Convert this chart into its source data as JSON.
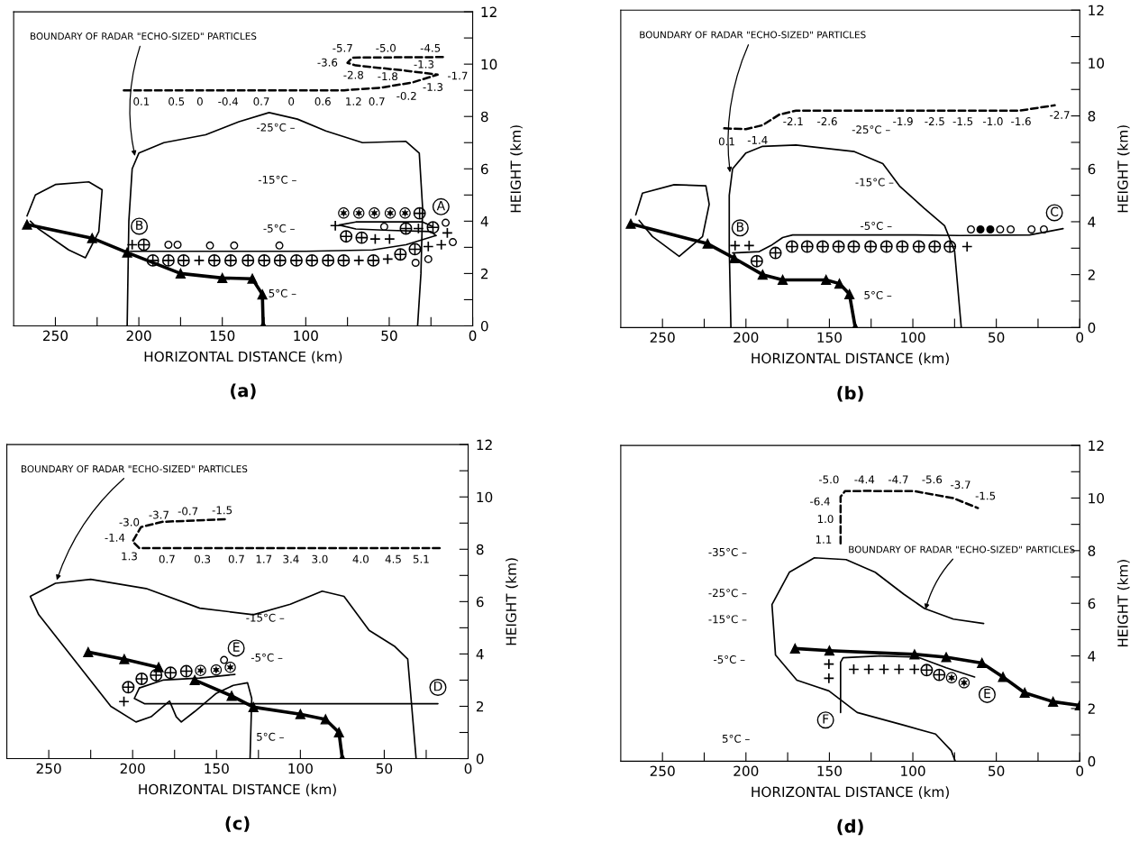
{
  "chart_data": [
    {
      "type": "line",
      "title": "(a)",
      "xlabel": "HORIZONTAL DISTANCE (km)",
      "ylabel": "HEIGHT (km)",
      "xlim": [
        275,
        0
      ],
      "ylim": [
        0,
        12
      ],
      "xticks": [
        250,
        {
          "value": 225,
          "label": null
        },
        200,
        {
          "value": 175,
          "label": null
        },
        150,
        {
          "value": 125,
          "label": null
        },
        100,
        {
          "value": 75,
          "label": null
        },
        50,
        {
          "value": 25,
          "label": null
        },
        0
      ],
      "yticks": [
        0,
        {
          "value": 1,
          "label": null
        },
        2,
        {
          "value": 3,
          "label": null
        },
        4,
        {
          "value": 5,
          "label": null
        },
        6,
        {
          "value": 7,
          "label": null
        },
        8,
        {
          "value": 9,
          "label": null
        },
        10,
        {
          "value": 11,
          "label": null
        },
        12
      ],
      "series": [
        {
          "name": "A",
          "color": "#000000",
          "line_style": "solid",
          "x": [
            22,
            25,
            50,
            70,
            80,
            70,
            30,
            24
          ],
          "values": [
            3.45,
            3.6,
            3.65,
            3.7,
            3.85,
            3.97,
            3.97,
            3.8
          ]
        },
        {
          "name": "B",
          "color": "#000000",
          "line_style": "solid",
          "x": [
            205,
            100,
            60,
            40,
            22
          ],
          "values": [
            2.85,
            2.85,
            2.9,
            3.1,
            3.45
          ]
        },
        {
          "color": "#000000",
          "line_style": "solid",
          "x": [
            207,
            206,
            204,
            200,
            185,
            160,
            140,
            122,
            105,
            88,
            66,
            40,
            32,
            30,
            31,
            33
          ],
          "values": [
            0,
            4,
            6,
            6.6,
            7.0,
            7.3,
            7.8,
            8.15,
            7.9,
            7.45,
            7.0,
            7.05,
            6.6,
            4.5,
            2,
            0
          ]
        },
        {
          "color": "#000000",
          "line_style": "solid",
          "x": [
            267,
            262,
            250,
            230,
            222,
            224,
            232,
            242,
            260,
            265
          ],
          "values": [
            4.2,
            5.0,
            5.4,
            5.5,
            5.2,
            3.6,
            2.6,
            2.9,
            3.7,
            4.0
          ]
        },
        {
          "color": "#000000",
          "line_style": "solid",
          "marker": "triangle",
          "x": [
            267,
            228,
            207,
            175,
            150,
            132,
            126,
            125.5
          ],
          "values": [
            3.87,
            3.35,
            2.8,
            2.0,
            1.83,
            1.8,
            1.2,
            0
          ]
        },
        {
          "color": "#000000",
          "line_style": "dashed",
          "x": [
            209,
            77,
            55,
            36,
            21,
            40,
            70,
            75,
            72,
            16
          ],
          "values": [
            9.0,
            9.0,
            9.1,
            9.3,
            9.6,
            9.75,
            9.95,
            10.05,
            10.25,
            10.27
          ]
        },
        {
          "type": "scatter",
          "color": "#000000",
          "x": [
            191.6,
            182.3,
            173.2,
            154.8,
            145,
            134.6,
            124.9,
            115.4,
            105.6,
            96.3,
            86.6,
            77.3,
            59.5,
            43.3,
            34.6,
            197,
            75.8,
            66.5,
            40,
            23.8,
            31.8
          ],
          "values": [
            2.5,
            2.5,
            2.5,
            2.5,
            2.5,
            2.5,
            2.5,
            2.5,
            2.5,
            2.5,
            2.5,
            2.5,
            2.5,
            2.73,
            2.93,
            3.1,
            3.42,
            3.37,
            3.72,
            3.76,
            4.3
          ]
        },
        {
          "type": "scatter",
          "color": "#000000",
          "marker": "cross",
          "x": [
            163.9,
            68.2,
            50.9,
            204,
            58.4,
            49.8,
            82.3,
            32.5,
            15.2,
            26.6,
            18.8
          ],
          "values": [
            2.5,
            2.5,
            2.55,
            3.1,
            3.32,
            3.32,
            3.83,
            3.72,
            3.55,
            3.03,
            3.1
          ]
        },
        {
          "type": "scatter",
          "color": "#000000",
          "marker": "circle",
          "x": [
            182.3,
            176.8,
            157.4,
            142.9,
            115.8,
            53,
            16.2,
            11.9,
            26.6,
            34.2
          ],
          "values": [
            3.1,
            3.1,
            3.07,
            3.07,
            3.07,
            3.79,
            3.94,
            3.2,
            2.55,
            2.41
          ]
        },
        {
          "type": "scatter",
          "color": "#000000",
          "marker": "star",
          "x": [
            77.3,
            68.2,
            58.9,
            49.4,
            40.5
          ],
          "values": [
            4.31,
            4.31,
            4.31,
            4.31,
            4.31
          ]
        }
      ],
      "annotations": [
        {
          "text": "BOUNDARY OF RADAR \"ECHO-SIZED\" PARTICLES",
          "x": 202,
          "y": 6.4
        },
        "0.1",
        "0.5",
        "0",
        "-0.4",
        "0.7",
        "0",
        "0.6",
        "1.2",
        "0.7",
        "-0.2",
        "-1.3",
        "-1.7",
        "-1.8",
        "-2.8",
        "-3.6",
        "-1.3",
        "-5.7",
        "-5.0",
        "-4.5",
        "-25°C –",
        "-15°C –",
        "-5°C –",
        "5°C –"
      ]
    },
    {
      "type": "line",
      "title": "(b)",
      "xlabel": "HORIZONTAL DISTANCE (km)",
      "ylabel": "HEIGHT (km)",
      "xlim": [
        275,
        0
      ],
      "ylim": [
        0,
        12
      ],
      "xticks": [
        250,
        {
          "value": 225,
          "label": null
        },
        200,
        {
          "value": 175,
          "label": null
        },
        150,
        {
          "value": 125,
          "label": null
        },
        100,
        {
          "value": 75,
          "label": null
        },
        50,
        {
          "value": 25,
          "label": null
        },
        0
      ],
      "yticks": [
        0,
        {
          "value": 1,
          "label": null
        },
        2,
        {
          "value": 3,
          "label": null
        },
        4,
        {
          "value": 5,
          "label": null
        },
        6,
        {
          "value": 7,
          "label": null
        },
        8,
        {
          "value": 9,
          "label": null
        },
        10,
        {
          "value": 11,
          "label": null
        },
        12
      ],
      "series": [
        {
          "name": "B",
          "color": "#000000",
          "line_style": "solid",
          "x": [
            208,
            192,
            185,
            178,
            172,
            100,
            72,
            30,
            10
          ],
          "values": [
            2.82,
            2.87,
            3.1,
            3.4,
            3.5,
            3.5,
            3.48,
            3.5,
            3.74
          ]
        },
        {
          "color": "#000000",
          "line_style": "solid",
          "x": [
            209,
            210,
            210,
            208,
            200,
            190,
            170,
            135,
            118,
            108,
            93,
            81,
            75,
            71
          ],
          "values": [
            0,
            3,
            5,
            6,
            6.6,
            6.85,
            6.9,
            6.65,
            6.2,
            5.35,
            4.5,
            3.85,
            2.9,
            0
          ]
        },
        {
          "color": "#000000",
          "line_style": "solid",
          "x": [
            266,
            262,
            243,
            224,
            222,
            226,
            240,
            256,
            264
          ],
          "values": [
            4.26,
            5.08,
            5.4,
            5.36,
            4.66,
            3.44,
            2.69,
            3.44,
            4.05
          ]
        },
        {
          "color": "#000000",
          "line_style": "solid",
          "marker": "triangle",
          "x": [
            269,
            223,
            207,
            190,
            178,
            152,
            144,
            138,
            134.5
          ],
          "values": [
            3.92,
            3.17,
            2.62,
            2.0,
            1.8,
            1.8,
            1.66,
            1.26,
            0
          ]
        },
        {
          "color": "#000000",
          "line_style": "dashed",
          "x": [
            213,
            200,
            190,
            180,
            170,
            93,
            36,
            15
          ],
          "values": [
            7.53,
            7.5,
            7.65,
            8.05,
            8.2,
            8.2,
            8.2,
            8.4
          ]
        },
        {
          "type": "scatter",
          "color": "#000000",
          "x": [
            172.4,
            163.3,
            154,
            144.5,
            135.4,
            125.3,
            115.8,
            106.3,
            96.4,
            86.9,
            77.8,
            193.5,
            182.3
          ],
          "values": [
            3.06,
            3.06,
            3.06,
            3.06,
            3.06,
            3.06,
            3.06,
            3.06,
            3.06,
            3.06,
            3.06,
            2.51,
            2.82
          ]
        },
        {
          "type": "scatter",
          "color": "#000000",
          "marker": "cross",
          "x": [
            206.5,
            198.1,
            67.5
          ],
          "values": [
            3.1,
            3.1,
            3.06
          ]
        },
        {
          "type": "scatter",
          "color": "#000000",
          "marker": "circle",
          "x": [
            65.2,
            47.7,
            41.4,
            28.9,
            21.5
          ],
          "values": [
            3.71,
            3.71,
            3.71,
            3.71,
            3.71
          ]
        },
        {
          "type": "scatter",
          "color": "#000000",
          "marker": "circle",
          "colors": [
            "#000000",
            "#000000"
          ],
          "x": [
            59.5,
            53.6
          ],
          "values": [
            3.71,
            3.71
          ]
        }
      ],
      "annotations": [
        {
          "text": "BOUNDARY OF RADAR \"ECHO-SIZED\" PARTICLES",
          "x": 209.3,
          "y": 5.77
        },
        "C",
        "0.1",
        "-1.4",
        "-2.1",
        "-2.6",
        "-1.9",
        "-2.5",
        "-1.5",
        "-1.0",
        "-1.6",
        "-2.7",
        "-25°C –",
        "-15°C –",
        "-5°C –",
        "5°C –"
      ]
    },
    {
      "type": "line",
      "title": "(c)",
      "xlabel": "HORIZONTAL DISTANCE (km)",
      "ylabel": "HEIGHT (km)",
      "xlim": [
        275,
        0
      ],
      "ylim": [
        0,
        12
      ],
      "xticks": [
        250,
        {
          "value": 225,
          "label": null
        },
        200,
        {
          "value": 175,
          "label": null
        },
        150,
        {
          "value": 125,
          "label": null
        },
        100,
        {
          "value": 75,
          "label": null
        },
        50,
        {
          "value": 25,
          "label": null
        },
        0
      ],
      "yticks": [
        0,
        {
          "value": 1,
          "label": null
        },
        2,
        {
          "value": 3,
          "label": null
        },
        4,
        {
          "value": 5,
          "label": null
        },
        6,
        {
          "value": 7,
          "label": null
        },
        8,
        {
          "value": 9,
          "label": null
        },
        10,
        {
          "value": 11,
          "label": null
        },
        12
      ],
      "series": [
        {
          "name": "D",
          "color": "#000000",
          "line_style": "solid",
          "x": [
            18,
            193,
            199,
            196
          ],
          "values": [
            2.1,
            2.1,
            2.3,
            2.7
          ]
        },
        {
          "name": "E",
          "color": "#000000",
          "line_style": "solid",
          "x": [
            139,
            160,
            182,
            196
          ],
          "values": [
            3.22,
            3.08,
            3.0,
            2.7
          ]
        },
        {
          "color": "#000000",
          "line_style": "solid",
          "x": [
            130,
            129,
            131.5,
            140,
            150,
            163,
            171,
            174,
            178,
            189,
            198,
            213,
            256,
            261,
            246,
            225,
            192,
            160,
            128,
            106,
            87,
            74,
            59,
            44,
            36,
            31
          ],
          "values": [
            0,
            2.3,
            2.9,
            2.8,
            2.5,
            1.8,
            1.4,
            1.6,
            2.2,
            1.6,
            1.4,
            2.0,
            5.5,
            6.2,
            6.7,
            6.85,
            6.5,
            5.75,
            5.5,
            5.9,
            6.4,
            6.2,
            4.9,
            4.3,
            3.8,
            0
          ]
        },
        {
          "color": "#000000",
          "line_style": "solid",
          "marker": "triangle",
          "x": [
            226.5,
            205,
            184.5
          ],
          "values": [
            4.07,
            3.8,
            3.49
          ]
        },
        {
          "color": "#000000",
          "line_style": "solid",
          "marker": "triangle",
          "x": [
            163,
            141,
            128,
            100,
            85,
            77,
            75
          ],
          "values": [
            3.0,
            2.4,
            1.97,
            1.7,
            1.5,
            1.0,
            0
          ]
        },
        {
          "color": "#000000",
          "line_style": "dashed",
          "x": [
            17,
            196,
            200,
            195,
            182,
            143
          ],
          "values": [
            8.04,
            8.04,
            8.3,
            8.85,
            9.05,
            9.15
          ]
        },
        {
          "type": "scatter",
          "color": "#000000",
          "x": [
            202.6,
            194.6,
            186,
            177.4,
            168
          ],
          "values": [
            2.73,
            3.05,
            3.19,
            3.28,
            3.34
          ]
        },
        {
          "type": "scatter",
          "color": "#000000",
          "marker": "star",
          "x": [
            159.5,
            150.2,
            141.8
          ],
          "values": [
            3.37,
            3.39,
            3.49
          ]
        },
        {
          "type": "scatter",
          "color": "#000000",
          "marker": "circle",
          "x": [
            145.5
          ],
          "values": [
            3.77
          ]
        },
        {
          "type": "scatter",
          "color": "#000000",
          "marker": "cross",
          "x": [
            205.2
          ],
          "values": [
            2.18
          ]
        }
      ],
      "annotations": [
        {
          "text": "BOUNDARY OF RADAR \"ECHO-SIZED\" PARTICLES",
          "x": 245.7,
          "y": 6.73
        },
        "1.3",
        "0.7",
        "0.3",
        "0.7",
        "1.7",
        "3.4",
        "3.0",
        "4.0",
        "4.5",
        "5.1",
        "-1.4",
        "-3.0",
        "-3.7",
        "-0.7",
        "-1.5",
        "-15°C –",
        "-5°C –",
        "5°C –"
      ]
    },
    {
      "type": "line",
      "title": "(d)",
      "xlabel": "HORIZONTAL DISTANCE (km)",
      "ylabel": "HEIGHT (km)",
      "xlim": [
        275,
        0
      ],
      "ylim": [
        0,
        12
      ],
      "xticks": [
        250,
        {
          "value": 225,
          "label": null
        },
        200,
        {
          "value": 175,
          "label": null
        },
        150,
        {
          "value": 125,
          "label": null
        },
        100,
        {
          "value": 75,
          "label": null
        },
        50,
        {
          "value": 25,
          "label": null
        },
        0
      ],
      "yticks": [
        0,
        {
          "value": 1,
          "label": null
        },
        2,
        {
          "value": 3,
          "label": null
        },
        4,
        {
          "value": 5,
          "label": null
        },
        6,
        {
          "value": 7,
          "label": null
        },
        8,
        {
          "value": 9,
          "label": null
        },
        10,
        {
          "value": 11,
          "label": null
        },
        12
      ],
      "series": [
        {
          "name": "E",
          "color": "#000000",
          "line_style": "solid",
          "x": [
            63,
            80,
            97,
            120
          ],
          "values": [
            3.2,
            3.55,
            3.95,
            4.0
          ]
        },
        {
          "name": "F",
          "color": "#000000",
          "line_style": "solid",
          "x": [
            143.3,
            143.3,
            141.8,
            120
          ],
          "values": [
            1.85,
            3.76,
            3.93,
            4.0
          ]
        },
        {
          "color": "#000000",
          "line_style": "solid",
          "x": [
            57.6,
            75.7,
            93,
            105.5,
            122.6,
            140,
            159,
            174,
            184.4,
            182.3,
            169.5,
            150.3,
            133.3,
            105.5,
            86.4,
            77,
            74.6
          ],
          "values": [
            5.23,
            5.4,
            5.8,
            6.35,
            7.18,
            7.66,
            7.73,
            7.18,
            5.95,
            4.04,
            3.08,
            2.67,
            1.85,
            1.37,
            1.03,
            0.4,
            0
          ]
        },
        {
          "color": "#000000",
          "line_style": "solid",
          "marker": "triangle",
          "x": [
            170.6,
            150,
            99,
            80,
            58.6,
            46,
            33,
            16,
            0
          ],
          "values": [
            4.28,
            4.2,
            4.06,
            3.95,
            3.73,
            3.2,
            2.6,
            2.26,
            2.12
          ]
        },
        {
          "color": "#000000",
          "line_style": "dashed",
          "x": [
            143.3,
            143.3,
            140.7,
            129,
            99,
            76,
            61
          ],
          "values": [
            8.28,
            10.05,
            10.26,
            10.27,
            10.26,
            10.0,
            9.62
          ]
        },
        {
          "type": "scatter",
          "color": "#000000",
          "marker": "cross",
          "x": [
            150.3,
            150.3,
            135.4,
            126.4,
            117.3,
            108.3,
            99.1
          ],
          "values": [
            3.69,
            3.15,
            3.49,
            3.49,
            3.49,
            3.49,
            3.49
          ]
        },
        {
          "type": "scatter",
          "color": "#000000",
          "x": [
            91.7,
            84.2
          ],
          "values": [
            3.46,
            3.28
          ]
        },
        {
          "type": "scatter",
          "color": "#000000",
          "marker": "star",
          "x": [
            76.8,
            69.3
          ],
          "values": [
            3.17,
            2.98
          ]
        }
      ],
      "annotations": [
        {
          "text": "BOUNDARY OF RADAR \"ECHO-SIZED\" PARTICLES",
          "x": 92.8,
          "y": 5.68
        },
        "-5.0",
        "-4.4",
        "-4.7",
        "-5.6",
        "-3.7",
        "-1.5",
        "-6.4",
        "1.0",
        "1.1",
        "-35°C –",
        "-25°C –",
        "-15°C –",
        "-5°C –",
        "5°C –"
      ]
    }
  ]
}
